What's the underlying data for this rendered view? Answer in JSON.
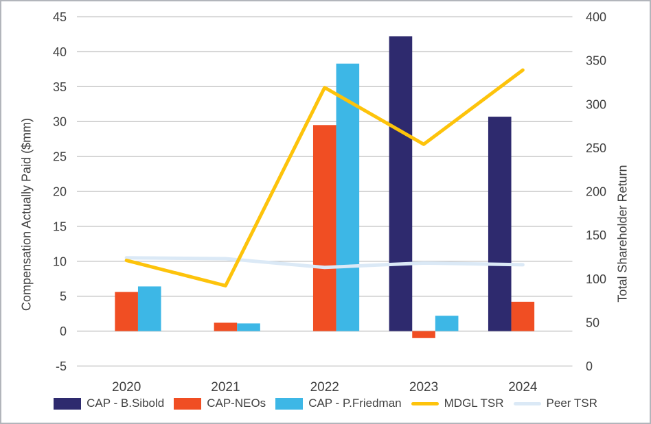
{
  "chart_data": {
    "type": "combo_bar_line",
    "categories": [
      "2020",
      "2021",
      "2022",
      "2023",
      "2024"
    ],
    "bar_series": [
      {
        "name": "CAP - B.Sibold",
        "color": "#2E2A6E",
        "values": [
          null,
          null,
          null,
          42.2,
          30.7
        ]
      },
      {
        "name": "CAP-NEOs",
        "color": "#F04E23",
        "values": [
          5.6,
          1.2,
          29.5,
          -1.0,
          4.2
        ]
      },
      {
        "name": "CAP - P.Friedman",
        "color": "#3DB7E6",
        "values": [
          6.4,
          1.1,
          38.3,
          2.2,
          null
        ]
      }
    ],
    "line_series": [
      {
        "name": "MDGL TSR",
        "color": "#FDC30B",
        "axis": "right",
        "values": [
          121,
          92,
          319,
          254,
          339
        ]
      },
      {
        "name": "Peer TSR",
        "color": "#DBE9F6",
        "axis": "right",
        "values": [
          124,
          123,
          113,
          118,
          116
        ]
      }
    ],
    "left_axis": {
      "title": "Compensation Actually Paid ($mm)",
      "min": -5,
      "max": 45,
      "step": 5,
      "ticks": [
        -5,
        0,
        5,
        10,
        15,
        20,
        25,
        30,
        35,
        40,
        45
      ]
    },
    "right_axis": {
      "title": "Total Shareholder Return",
      "min": 0,
      "max": 400,
      "step": 50,
      "ticks": [
        0,
        50,
        100,
        150,
        200,
        250,
        300,
        350,
        400
      ]
    },
    "grid": "on",
    "grid_color": "#C9C9C9",
    "legend_position": "bottom",
    "text_color": "#404040"
  }
}
